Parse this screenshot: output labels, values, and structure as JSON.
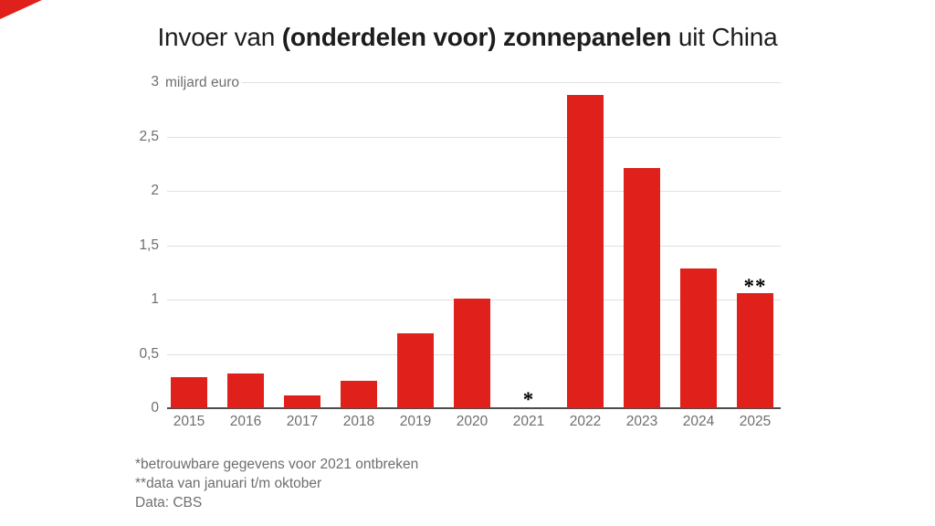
{
  "colors": {
    "bar": "#e0201a",
    "grid": "#e0e0e0",
    "axis": "#4d4d4d",
    "muted_text": "#6e6e6e",
    "title_text": "#1d1d1d",
    "annotation": "#000000"
  },
  "title": {
    "prefix": "Invoer van ",
    "bold": "(onderdelen voor) zonnepanelen",
    "suffix": " uit China"
  },
  "chart_data": {
    "type": "bar",
    "title": "Invoer van (onderdelen voor) zonnepanelen uit China",
    "unit_label": "miljard euro",
    "categories": [
      "2015",
      "2016",
      "2017",
      "2018",
      "2019",
      "2020",
      "2021",
      "2022",
      "2023",
      "2024",
      "2025"
    ],
    "values": [
      0.29,
      0.32,
      0.12,
      0.25,
      0.69,
      1.01,
      null,
      2.88,
      2.21,
      1.29,
      1.06
    ],
    "annotations": [
      {
        "category": "2021",
        "marker": "*",
        "note": "no bar, data missing"
      },
      {
        "category": "2025",
        "marker": "**",
        "note": "above bar"
      }
    ],
    "ylim": [
      0,
      3
    ],
    "ytick_values": [
      0,
      0.5,
      1,
      1.5,
      2,
      2.5,
      3
    ],
    "ytick_labels": [
      "0",
      "0,5",
      "1",
      "1,5",
      "2",
      "2,5",
      "3"
    ],
    "grid": true,
    "legend": "none",
    "bar_color": "#e0201a"
  },
  "footnotes": {
    "line1": "*betrouwbare gegevens voor 2021 ontbreken",
    "line2": "**data van januari t/m oktober",
    "line3": "Data: CBS"
  }
}
